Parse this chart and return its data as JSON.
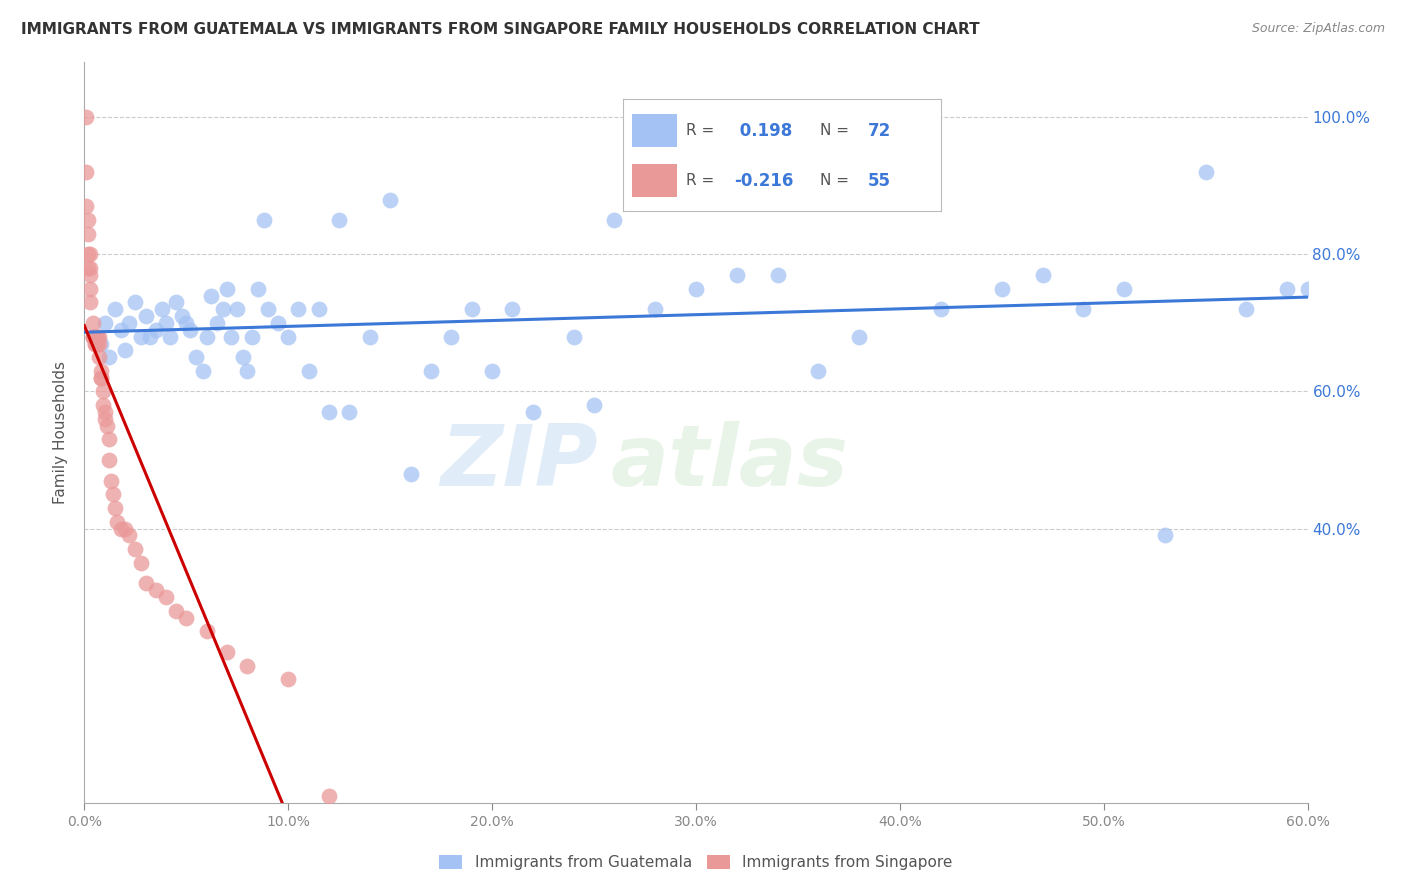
{
  "title": "IMMIGRANTS FROM GUATEMALA VS IMMIGRANTS FROM SINGAPORE FAMILY HOUSEHOLDS CORRELATION CHART",
  "source": "Source: ZipAtlas.com",
  "ylabel": "Family Households",
  "xlim": [
    0.0,
    0.6
  ],
  "ylim": [
    0.0,
    1.08
  ],
  "guatemala_color": "#a4c2f4",
  "singapore_color": "#ea9999",
  "guatemala_line_color": "#3c78d8",
  "singapore_line_color": "#cc0000",
  "singapore_line_color_dash": "#e06666",
  "guatemala_R": 0.198,
  "guatemala_N": 72,
  "singapore_R": -0.216,
  "singapore_N": 55,
  "watermark_zip": "ZIP",
  "watermark_atlas": "atlas",
  "legend_label_guatemala": "Immigrants from Guatemala",
  "legend_label_singapore": "Immigrants from Singapore",
  "guatemala_scatter_x": [
    0.005,
    0.008,
    0.01,
    0.012,
    0.015,
    0.018,
    0.02,
    0.022,
    0.025,
    0.028,
    0.03,
    0.032,
    0.035,
    0.038,
    0.04,
    0.042,
    0.045,
    0.048,
    0.05,
    0.052,
    0.055,
    0.058,
    0.06,
    0.062,
    0.065,
    0.068,
    0.07,
    0.072,
    0.075,
    0.078,
    0.08,
    0.082,
    0.085,
    0.088,
    0.09,
    0.095,
    0.1,
    0.105,
    0.11,
    0.115,
    0.12,
    0.125,
    0.13,
    0.14,
    0.15,
    0.16,
    0.17,
    0.18,
    0.19,
    0.2,
    0.21,
    0.22,
    0.24,
    0.25,
    0.26,
    0.28,
    0.3,
    0.32,
    0.34,
    0.36,
    0.38,
    0.4,
    0.42,
    0.45,
    0.47,
    0.49,
    0.51,
    0.53,
    0.55,
    0.57,
    0.59,
    0.6
  ],
  "guatemala_scatter_y": [
    0.68,
    0.67,
    0.7,
    0.65,
    0.72,
    0.69,
    0.66,
    0.7,
    0.73,
    0.68,
    0.71,
    0.68,
    0.69,
    0.72,
    0.7,
    0.68,
    0.73,
    0.71,
    0.7,
    0.69,
    0.65,
    0.63,
    0.68,
    0.74,
    0.7,
    0.72,
    0.75,
    0.68,
    0.72,
    0.65,
    0.63,
    0.68,
    0.75,
    0.85,
    0.72,
    0.7,
    0.68,
    0.72,
    0.63,
    0.72,
    0.57,
    0.85,
    0.57,
    0.68,
    0.88,
    0.48,
    0.63,
    0.68,
    0.72,
    0.63,
    0.72,
    0.57,
    0.68,
    0.58,
    0.85,
    0.72,
    0.75,
    0.77,
    0.77,
    0.63,
    0.68,
    0.95,
    0.72,
    0.75,
    0.77,
    0.72,
    0.75,
    0.39,
    0.92,
    0.72,
    0.75,
    0.75
  ],
  "singapore_scatter_x": [
    0.001,
    0.001,
    0.001,
    0.002,
    0.002,
    0.002,
    0.002,
    0.003,
    0.003,
    0.003,
    0.003,
    0.003,
    0.004,
    0.004,
    0.004,
    0.004,
    0.005,
    0.005,
    0.005,
    0.005,
    0.006,
    0.006,
    0.006,
    0.007,
    0.007,
    0.007,
    0.008,
    0.008,
    0.008,
    0.009,
    0.009,
    0.01,
    0.01,
    0.011,
    0.012,
    0.012,
    0.013,
    0.014,
    0.015,
    0.016,
    0.018,
    0.02,
    0.022,
    0.025,
    0.028,
    0.03,
    0.035,
    0.04,
    0.045,
    0.05,
    0.06,
    0.07,
    0.08,
    0.1,
    0.12
  ],
  "singapore_scatter_y": [
    1.0,
    0.92,
    0.87,
    0.85,
    0.83,
    0.8,
    0.78,
    0.8,
    0.78,
    0.77,
    0.75,
    0.73,
    0.7,
    0.68,
    0.68,
    0.68,
    0.67,
    0.68,
    0.67,
    0.68,
    0.67,
    0.68,
    0.68,
    0.68,
    0.67,
    0.65,
    0.63,
    0.62,
    0.62,
    0.6,
    0.58,
    0.57,
    0.56,
    0.55,
    0.53,
    0.5,
    0.47,
    0.45,
    0.43,
    0.41,
    0.4,
    0.4,
    0.39,
    0.37,
    0.35,
    0.32,
    0.31,
    0.3,
    0.28,
    0.27,
    0.25,
    0.22,
    0.2,
    0.18,
    0.01
  ],
  "ytick_positions": [
    0.4,
    0.6,
    0.8,
    1.0
  ],
  "ytick_labels": [
    "40.0%",
    "60.0%",
    "80.0%",
    "100.0%"
  ],
  "xtick_positions": [
    0.0,
    0.1,
    0.2,
    0.3,
    0.4,
    0.5,
    0.6
  ],
  "xtick_labels": [
    "0.0%",
    "10.0%",
    "20.0%",
    "30.0%",
    "40.0%",
    "50.0%",
    "60.0%"
  ]
}
